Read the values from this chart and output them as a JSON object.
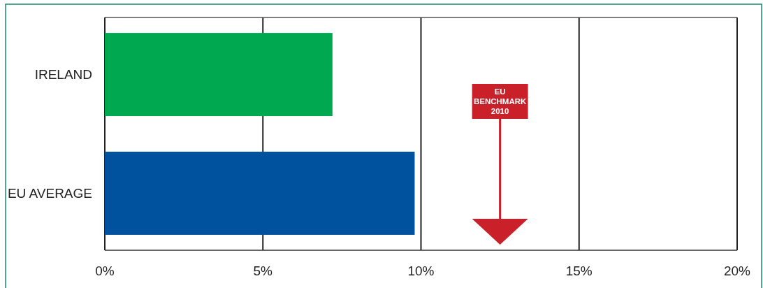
{
  "chart_data": {
    "type": "bar",
    "orientation": "horizontal",
    "categories": [
      "IRELAND",
      "EU AVERAGE"
    ],
    "values": [
      7.2,
      9.8
    ],
    "colors": [
      "#00a84f",
      "#00519e"
    ],
    "xlim": [
      0,
      20
    ],
    "xticks": [
      {
        "value": 0,
        "label": "0%"
      },
      {
        "value": 5,
        "label": "5%"
      },
      {
        "value": 10,
        "label": "10%"
      },
      {
        "value": 15,
        "label": "15%"
      },
      {
        "value": 20,
        "label": "20%"
      }
    ],
    "grid": "x",
    "ref_lines": [
      {
        "axis": "x",
        "value": 12.5,
        "label": "EU BENCHMARK 2010",
        "color": "#c9202a"
      }
    ]
  }
}
